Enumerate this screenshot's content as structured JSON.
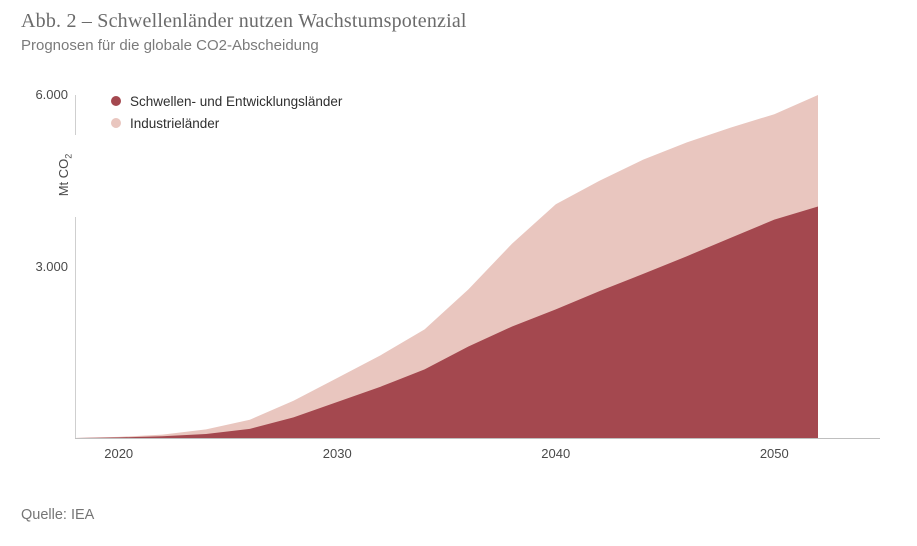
{
  "header": {
    "title": "Abb. 2 – Schwellenländer nutzen Wachstumspotenzial",
    "subtitle": "Prognosen für die globale CO2-Abscheidung"
  },
  "source": "Quelle: IEA",
  "chart_data": {
    "type": "area",
    "stacked": true,
    "title": "Abb. 2 – Schwellenländer nutzen Wachstumspotenzial",
    "subtitle": "Prognosen für die globale CO2-Abscheidung",
    "ylabel": {
      "text": "Mt CO",
      "sub": "2"
    },
    "xlim": [
      2018,
      2052
    ],
    "ylim": [
      0,
      6000
    ],
    "grid": false,
    "legend_position": "top-left",
    "x": [
      2018,
      2020,
      2022,
      2024,
      2026,
      2028,
      2030,
      2032,
      2034,
      2036,
      2038,
      2040,
      2042,
      2044,
      2046,
      2048,
      2050,
      2052
    ],
    "series": [
      {
        "name": "Schwellen- und Entwicklungsländer",
        "color": "#a4484f",
        "values": [
          0,
          10,
          30,
          70,
          160,
          360,
          630,
          900,
          1200,
          1600,
          1950,
          2250,
          2570,
          2870,
          3180,
          3500,
          3820,
          4050
        ]
      },
      {
        "name": "Industrieländer",
        "color": "#e9c6bf",
        "values": [
          0,
          10,
          30,
          80,
          160,
          290,
          420,
          550,
          700,
          1000,
          1450,
          1840,
          1930,
          2000,
          1990,
          1930,
          1845,
          1950
        ]
      }
    ],
    "yticks": [
      {
        "value": 6000,
        "label": "6.000"
      },
      {
        "value": 3000,
        "label": "3.000"
      }
    ],
    "xticks": [
      {
        "value": 2020,
        "label": "2020"
      },
      {
        "value": 2030,
        "label": "2030"
      },
      {
        "value": 2040,
        "label": "2040"
      },
      {
        "value": 2050,
        "label": "2050"
      }
    ]
  }
}
